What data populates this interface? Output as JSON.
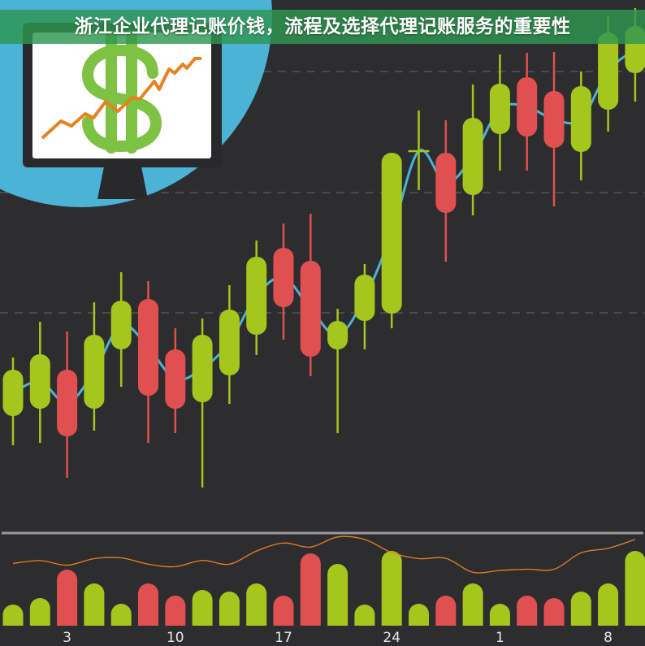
{
  "title": "浙江企业代理记账价钱，流程及选择代理记账服务的重要性",
  "illustration": {
    "icon": "monitor-dollar-chart-icon",
    "circle_color": "#4bb3d6",
    "dollar_color": "#7dc242",
    "trend_color": "#e8821e"
  },
  "chart_data": [
    {
      "type": "candlestick",
      "colors": {
        "up": "#a5c61c",
        "down": "#e05050",
        "moving_average": "#4bb3d6"
      },
      "grid": "dashed horizontal",
      "candles": [
        {
          "o": 128,
          "h": 200,
          "l": 92,
          "c": 185
        },
        {
          "o": 137,
          "h": 244,
          "l": 95,
          "c": 204
        },
        {
          "o": 185,
          "h": 232,
          "l": 52,
          "c": 103
        },
        {
          "o": 137,
          "h": 268,
          "l": 110,
          "c": 228
        },
        {
          "o": 210,
          "h": 305,
          "l": 164,
          "c": 270
        },
        {
          "o": 272,
          "h": 294,
          "l": 95,
          "c": 153
        },
        {
          "o": 210,
          "h": 236,
          "l": 107,
          "c": 137
        },
        {
          "o": 145,
          "h": 248,
          "l": 40,
          "c": 228
        },
        {
          "o": 178,
          "h": 289,
          "l": 143,
          "c": 259
        },
        {
          "o": 228,
          "h": 344,
          "l": 203,
          "c": 324
        },
        {
          "o": 335,
          "h": 365,
          "l": 222,
          "c": 262
        },
        {
          "o": 319,
          "h": 377,
          "l": 177,
          "c": 201
        },
        {
          "o": 210,
          "h": 260,
          "l": 107,
          "c": 245
        },
        {
          "o": 245,
          "h": 315,
          "l": 210,
          "c": 302
        },
        {
          "o": 254,
          "h": 452,
          "l": 236,
          "c": 452
        },
        {
          "o": 454,
          "h": 504,
          "l": 406,
          "c": 454
        },
        {
          "o": 452,
          "h": 492,
          "l": 318,
          "c": 378
        },
        {
          "o": 400,
          "h": 536,
          "l": 375,
          "c": 495
        },
        {
          "o": 475,
          "h": 573,
          "l": 430,
          "c": 537
        },
        {
          "o": 545,
          "h": 575,
          "l": 430,
          "c": 472
        },
        {
          "o": 528,
          "h": 576,
          "l": 386,
          "c": 458
        },
        {
          "o": 453,
          "h": 552,
          "l": 418,
          "c": 534
        },
        {
          "o": 505,
          "h": 620,
          "l": 478,
          "c": 600
        },
        {
          "o": 550,
          "h": 630,
          "l": 515,
          "c": 608
        }
      ]
    },
    {
      "type": "bar",
      "colors": {
        "up": "#a5c61c",
        "down": "#e05050",
        "trend": "#e8821e"
      },
      "values": [
        26,
        34,
        69,
        52,
        27,
        52,
        37,
        44,
        42,
        52,
        37,
        89,
        76,
        26,
        92,
        27,
        37,
        52,
        27,
        37,
        34,
        42,
        52,
        92
      ],
      "x_tick_labels": [
        {
          "index": 2,
          "label": "3"
        },
        {
          "index": 6,
          "label": "10"
        },
        {
          "index": 10,
          "label": "17"
        },
        {
          "index": 14,
          "label": "24"
        },
        {
          "index": 18,
          "label": "1"
        },
        {
          "index": 22,
          "label": "8"
        }
      ]
    }
  ]
}
